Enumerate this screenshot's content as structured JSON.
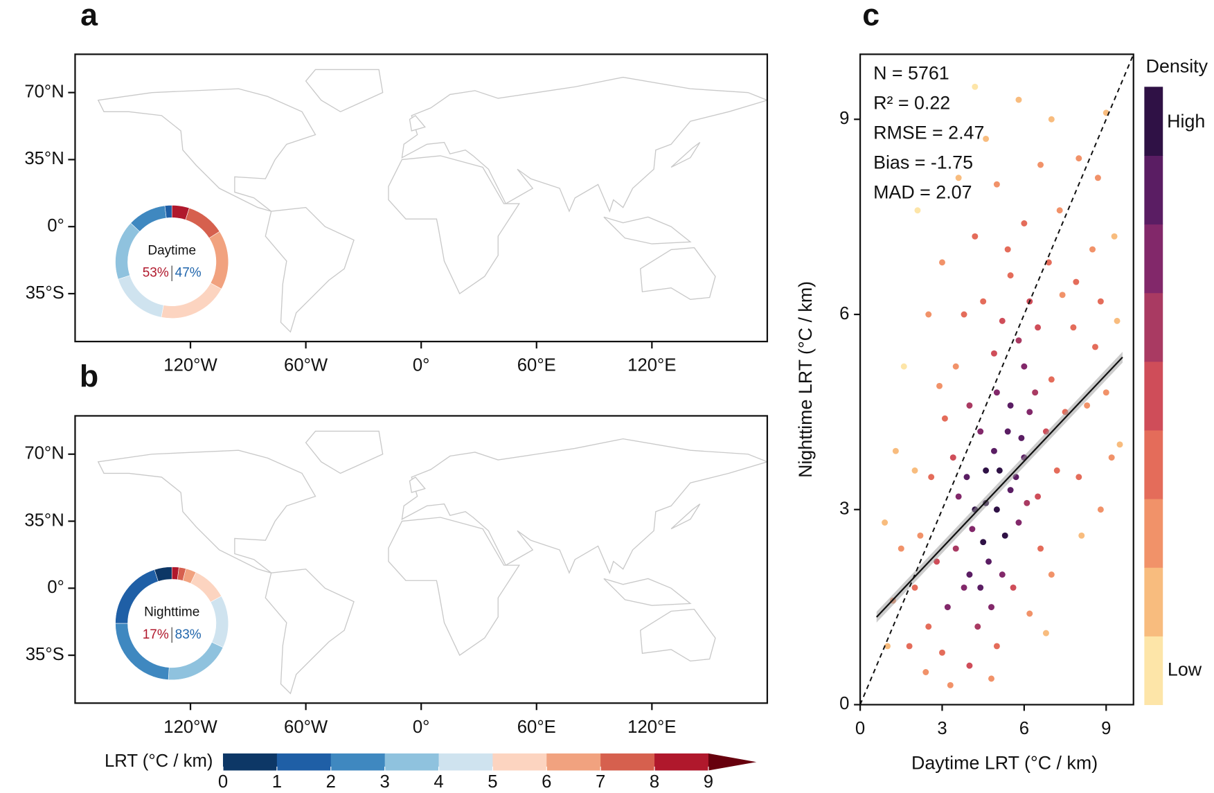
{
  "chart_data": [
    {
      "type": "map",
      "panel": "a",
      "xlim": [
        -180,
        180
      ],
      "ylim": [
        -60,
        90
      ],
      "xticks": [
        {
          "value": -120,
          "label": "120°W"
        },
        {
          "value": -60,
          "label": "60°W"
        },
        {
          "value": 0,
          "label": "0°"
        },
        {
          "value": 60,
          "label": "60°E"
        },
        {
          "value": 120,
          "label": "120°E"
        }
      ],
      "yticks": [
        {
          "value": 70,
          "label": "70°N"
        },
        {
          "value": 35,
          "label": "35°N"
        },
        {
          "value": 0,
          "label": "0°"
        },
        {
          "value": -35,
          "label": "35°S"
        }
      ],
      "donut": {
        "title": "Daytime",
        "values": [
          0,
          2,
          11,
          17,
          17,
          20,
          17,
          11,
          5
        ],
        "shares": {
          "values": [
            53,
            47
          ],
          "value_labels": [
            "53%",
            "47%"
          ],
          "colors": [
            "#b0182c",
            "#2166ac"
          ]
        }
      }
    },
    {
      "type": "map",
      "panel": "b",
      "xlim": [
        -180,
        180
      ],
      "ylim": [
        -60,
        90
      ],
      "xticks": [
        {
          "value": -120,
          "label": "120°W"
        },
        {
          "value": -60,
          "label": "60°W"
        },
        {
          "value": 0,
          "label": "0°"
        },
        {
          "value": 60,
          "label": "60°E"
        },
        {
          "value": 120,
          "label": "120°E"
        }
      ],
      "yticks": [
        {
          "value": 70,
          "label": "70°N"
        },
        {
          "value": 35,
          "label": "35°N"
        },
        {
          "value": 0,
          "label": "0°"
        },
        {
          "value": -35,
          "label": "35°S"
        }
      ],
      "donut": {
        "title": "Nighttime",
        "values": [
          5,
          20,
          24,
          19,
          15,
          10,
          3,
          2,
          2
        ],
        "shares": {
          "values": [
            17,
            83
          ],
          "value_labels": [
            "17%",
            "83%"
          ],
          "colors": [
            "#b0182c",
            "#2166ac"
          ]
        }
      }
    },
    {
      "type": "colorbar",
      "title": "LRT (°C / km)",
      "bins": [
        0,
        1,
        2,
        3,
        4,
        5,
        6,
        7,
        8,
        9
      ],
      "colors": [
        "#0d3766",
        "#1f5fa6",
        "#3f88c0",
        "#8fc2de",
        "#cfe3ef",
        "#fcd4c0",
        "#f1a27f",
        "#d6604e",
        "#b0182c"
      ],
      "extend_color": "#67000d"
    },
    {
      "type": "scatter",
      "panel": "c",
      "xlabel": "Daytime LRT (°C / km)",
      "ylabel": "Nighttime LRT (°C / km)",
      "xlim": [
        0,
        10
      ],
      "ylim": [
        0,
        10
      ],
      "xticks": [
        0,
        3,
        6,
        9
      ],
      "yticks": [
        0,
        3,
        6,
        9
      ],
      "annotations": [
        "N = 5761",
        "R² = 0.22",
        "RMSE = 2.47",
        "Bias = -1.75",
        "MAD = 2.07"
      ],
      "fit": {
        "slope": 0.444,
        "intercept": 1.08,
        "xrange": [
          0.6,
          9.6
        ]
      },
      "x": [
        4,
        4.5,
        5,
        5.5,
        6,
        4.2,
        5.2,
        4.8,
        3.8,
        6.2,
        5.8,
        4.6,
        5.4,
        3.5,
        6.5,
        4.3,
        5,
        6.8,
        3.2,
        5.6,
        4.4,
        6,
        3.6,
        7,
        7.2,
        2.8,
        3,
        4,
        5,
        6.5,
        5.8,
        4.9,
        7.5,
        7.8,
        8,
        2.5,
        2.2,
        3.4,
        4,
        6.6,
        5.2,
        7.4,
        8.3,
        8.6,
        2,
        1.8,
        2.6,
        3.1,
        6.9,
        5.5,
        4.5,
        8.8,
        9,
        9.2,
        1.5,
        1.2,
        2,
        3.5,
        4.2,
        6,
        7.3,
        8.5,
        9.4,
        8.1,
        7,
        6.2,
        1,
        2.9,
        3.8,
        5,
        6.6,
        8,
        7,
        5.8,
        4.2,
        2.5,
        1.3,
        0.9,
        3,
        9.3,
        9.5,
        8.8,
        3.3,
        4.8,
        2.4,
        6.8,
        5.4,
        7.9,
        1.6,
        2.1,
        3.6,
        8.7,
        9,
        4.6,
        6.2,
        5.1,
        4.1,
        5.9,
        4.7,
        5.3,
        4.9,
        5.7,
        3.9,
        6.4,
        4.4,
        5.5,
        6.1,
        4.6
      ],
      "values": [
        2,
        2.5,
        3,
        3.3,
        3.8,
        3,
        2,
        1.5,
        1.8,
        4.5,
        2.8,
        3.6,
        4.2,
        2.4,
        3.2,
        1.2,
        4.8,
        4.2,
        1.5,
        1.8,
        4.2,
        5.2,
        3.2,
        5,
        3.6,
        2.2,
        0.8,
        0.6,
        0.9,
        5.8,
        5.6,
        5.4,
        4.5,
        5.8,
        3.5,
        1.2,
        2.6,
        3.8,
        4.6,
        2.4,
        5.9,
        6.3,
        4.6,
        5.5,
        1.8,
        0.9,
        3.5,
        4.4,
        6.8,
        6.6,
        6.2,
        6.2,
        4.8,
        3.8,
        2.4,
        1.6,
        3.6,
        5.2,
        7.2,
        7.4,
        7.6,
        7,
        5.9,
        2.6,
        2,
        1.4,
        0.9,
        4.9,
        6,
        8,
        8.3,
        8.4,
        9,
        9.3,
        9.5,
        6,
        3.9,
        2.8,
        6.8,
        7.2,
        4,
        3,
        0.3,
        0.4,
        0.5,
        1.1,
        7,
        6.5,
        5.2,
        7.6,
        8.1,
        8.1,
        9.1,
        8.7,
        6.2,
        3.6,
        2.7,
        4.1,
        2.2,
        2.6,
        3.9,
        3.5,
        3.5,
        4.8,
        1.8,
        4.6,
        3.1,
        3.1
      ],
      "density_colorbar": {
        "title": "Density",
        "labels": [
          "Low",
          "High"
        ],
        "colors": [
          "#fde5a8",
          "#f8bc7e",
          "#f19269",
          "#e46c5a",
          "#cf4d59",
          "#a93a62",
          "#82286a",
          "#5a1d63",
          "#2f1145"
        ]
      }
    }
  ]
}
